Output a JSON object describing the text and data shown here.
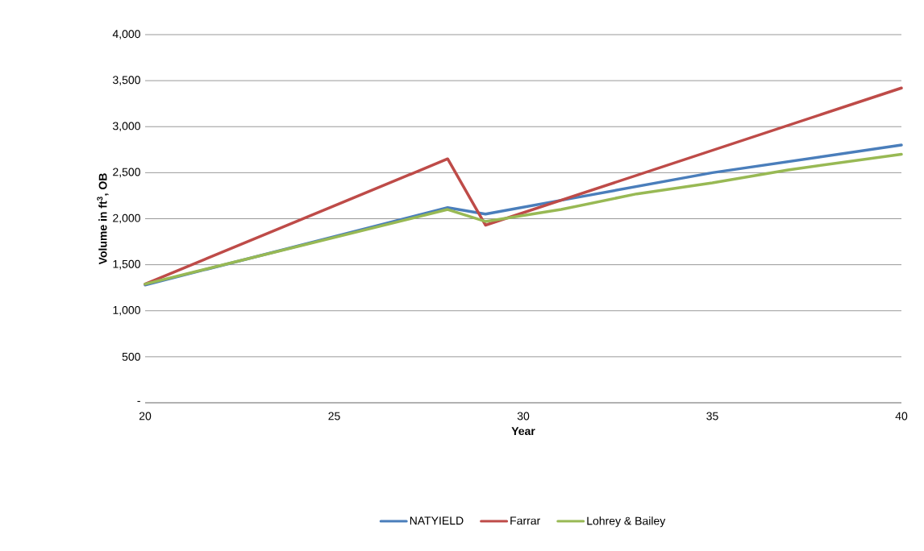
{
  "chart_data": {
    "type": "line",
    "xlabel": "Year",
    "ylabel": "Volume in ft$^{3}$, OB",
    "xlim": [
      20,
      40
    ],
    "xticks": [
      20,
      25,
      30,
      35,
      40
    ],
    "ylim": [
      0,
      4000
    ],
    "yticks": [
      {
        "value": 0,
        "label": "-"
      },
      {
        "value": 500,
        "label": "500"
      },
      {
        "value": 1000,
        "label": "1,000"
      },
      {
        "value": 1500,
        "label": "1,500"
      },
      {
        "value": 2000,
        "label": "2,000"
      },
      {
        "value": 2500,
        "label": "2,500"
      },
      {
        "value": 3000,
        "label": "3,000"
      },
      {
        "value": 3500,
        "label": "3,500"
      },
      {
        "value": 4000,
        "label": "4,000"
      }
    ],
    "grid": "y",
    "legend": "bottom",
    "marker": "none",
    "line_style": "solid",
    "series": [
      {
        "name": "NATYIELD",
        "color": "#4a7ebb",
        "x": [
          20,
          28,
          29,
          31,
          35,
          40
        ],
        "values": [
          1280,
          2120,
          2050,
          2200,
          2500,
          2800
        ]
      },
      {
        "name": "Farrar",
        "color": "#be4b48",
        "x": [
          20,
          28,
          29,
          40
        ],
        "values": [
          1290,
          2650,
          1930,
          3420
        ]
      },
      {
        "name": "Lohrey & Bailey",
        "color": "#98b954",
        "x": [
          20,
          28,
          29,
          31,
          33,
          35,
          37,
          40
        ],
        "values": [
          1290,
          2100,
          1970,
          2100,
          2270,
          2390,
          2530,
          2700
        ]
      }
    ]
  }
}
